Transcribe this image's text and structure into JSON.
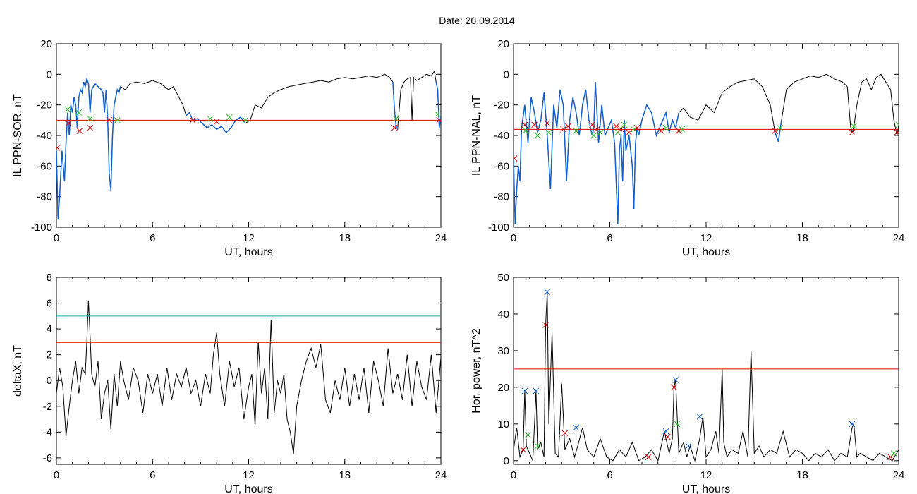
{
  "header": {
    "title": "Date:  20.09.2014"
  },
  "colors": {
    "trace": "#000000",
    "highlight": "#1060d0",
    "threshold_red": "#e00000",
    "threshold_teal": "#30a0a0",
    "marker_red": "#e00000",
    "marker_green": "#20c020",
    "marker_blue": "#1060d0"
  },
  "chart_data": [
    {
      "id": "sor",
      "type": "line",
      "ylabel": "IL PPN-SOR, nT",
      "xlabel": "UT, hours",
      "xlim": [
        0,
        24
      ],
      "ylim": [
        -100,
        20
      ],
      "xticks": [
        0,
        6,
        12,
        18,
        24
      ],
      "yticks": [
        -100,
        -80,
        -60,
        -40,
        -20,
        0,
        20
      ],
      "x": [
        0,
        0.1,
        0.2,
        0.35,
        0.5,
        0.6,
        0.7,
        0.8,
        0.9,
        1.0,
        1.1,
        1.2,
        1.3,
        1.4,
        1.5,
        1.6,
        1.7,
        1.8,
        1.9,
        2.0,
        2.1,
        2.2,
        2.3,
        2.4,
        2.6,
        2.8,
        2.9,
        3.0,
        3.1,
        3.2,
        3.3,
        3.4,
        3.5,
        3.6,
        3.7,
        3.8,
        3.9,
        4.0,
        4.3,
        4.6,
        5.0,
        5.5,
        6.0,
        6.5,
        7.0,
        7.3,
        7.6,
        7.9,
        8.1,
        8.3,
        8.5,
        8.8,
        9.1,
        9.4,
        9.7,
        10.0,
        10.3,
        10.6,
        10.9,
        11.2,
        11.5,
        11.8,
        12.1,
        12.4,
        12.8,
        13.2,
        13.6,
        14.0,
        14.5,
        15.0,
        15.5,
        16.0,
        16.5,
        17.0,
        17.5,
        18.0,
        18.5,
        19.0,
        19.5,
        20.0,
        20.5,
        20.8,
        21.0,
        21.1,
        21.2,
        21.3,
        21.5,
        21.7,
        21.9,
        22.1,
        22.2,
        22.3,
        22.5,
        22.8,
        23.1,
        23.4,
        23.6,
        23.7,
        23.8,
        23.9,
        24.0
      ],
      "y": [
        -50,
        -95,
        -80,
        -50,
        -70,
        -45,
        -25,
        -40,
        -20,
        -25,
        -15,
        -20,
        -35,
        -15,
        -10,
        -12,
        -5,
        -8,
        -3,
        -6,
        -25,
        -10,
        -8,
        -6,
        -8,
        -10,
        -12,
        -25,
        -10,
        -30,
        -65,
        -76,
        -40,
        -20,
        -15,
        -10,
        -12,
        -8,
        -10,
        -6,
        -5,
        -6,
        -4,
        -6,
        -10,
        -8,
        -14,
        -20,
        -27,
        -25,
        -30,
        -29,
        -32,
        -35,
        -33,
        -36,
        -34,
        -38,
        -35,
        -30,
        -28,
        -32,
        -30,
        -20,
        -22,
        -15,
        -12,
        -10,
        -8,
        -7,
        -6,
        -5,
        -4,
        -5,
        -3,
        -2,
        -3,
        -2,
        -1,
        -2,
        0,
        -2,
        -5,
        -22,
        -34,
        -36,
        -10,
        -5,
        -3,
        -2,
        -30,
        -2,
        -4,
        -2,
        0,
        -1,
        2,
        -5,
        -10,
        -35,
        -28
      ],
      "highlight_segments": [
        [
          0,
          4.0
        ],
        [
          8.1,
          12.0
        ],
        [
          21.0,
          21.3
        ],
        [
          23.7,
          24.0
        ]
      ],
      "thresholds": [
        {
          "value": -30,
          "color": "#e00000"
        }
      ],
      "markers": [
        {
          "x": 0.05,
          "y": -48,
          "color": "#e00000"
        },
        {
          "x": 0.7,
          "y": -23,
          "color": "#20c020"
        },
        {
          "x": 0.75,
          "y": -32,
          "color": "#e00000"
        },
        {
          "x": 1.4,
          "y": -25,
          "color": "#20c020"
        },
        {
          "x": 1.45,
          "y": -37,
          "color": "#e00000"
        },
        {
          "x": 2.1,
          "y": -29,
          "color": "#20c020"
        },
        {
          "x": 2.1,
          "y": -35,
          "color": "#e00000"
        },
        {
          "x": 3.3,
          "y": -30,
          "color": "#e00000"
        },
        {
          "x": 3.8,
          "y": -30,
          "color": "#20c020"
        },
        {
          "x": 8.5,
          "y": -30,
          "color": "#e00000"
        },
        {
          "x": 9.6,
          "y": -29,
          "color": "#20c020"
        },
        {
          "x": 10.0,
          "y": -31,
          "color": "#e00000"
        },
        {
          "x": 10.8,
          "y": -28,
          "color": "#20c020"
        },
        {
          "x": 11.8,
          "y": -30,
          "color": "#20c020"
        },
        {
          "x": 21.1,
          "y": -35,
          "color": "#e00000"
        },
        {
          "x": 21.2,
          "y": -29,
          "color": "#20c020"
        },
        {
          "x": 23.8,
          "y": -26,
          "color": "#20c020"
        },
        {
          "x": 23.9,
          "y": -30,
          "color": "#e00000"
        }
      ]
    },
    {
      "id": "nal",
      "type": "line",
      "ylabel": "IL PPN-NAL, nT",
      "xlabel": "UT, hours",
      "xlim": [
        0,
        24
      ],
      "ylim": [
        -100,
        20
      ],
      "xticks": [
        0,
        6,
        12,
        18,
        24
      ],
      "yticks": [
        -100,
        -80,
        -60,
        -40,
        -20,
        0,
        20
      ],
      "x": [
        0,
        0.1,
        0.2,
        0.3,
        0.4,
        0.5,
        0.7,
        0.9,
        1.1,
        1.3,
        1.5,
        1.7,
        1.9,
        2.1,
        2.3,
        2.5,
        2.7,
        2.9,
        3.1,
        3.3,
        3.5,
        3.7,
        3.9,
        4.1,
        4.3,
        4.5,
        4.7,
        4.9,
        5.0,
        5.1,
        5.3,
        5.5,
        5.7,
        5.9,
        6.1,
        6.3,
        6.5,
        6.6,
        6.7,
        6.8,
        6.9,
        7.0,
        7.2,
        7.4,
        7.5,
        7.6,
        7.7,
        7.8,
        8.0,
        8.3,
        8.6,
        8.9,
        9.1,
        9.3,
        9.5,
        9.7,
        9.9,
        10.1,
        10.3,
        10.6,
        11.0,
        11.5,
        12.0,
        12.5,
        13.0,
        13.5,
        14.0,
        14.5,
        15.0,
        15.5,
        16.0,
        16.3,
        16.5,
        16.7,
        17.0,
        17.5,
        18.0,
        18.5,
        19.0,
        19.5,
        20.0,
        20.5,
        20.8,
        21.0,
        21.1,
        21.2,
        21.4,
        21.7,
        22.0,
        22.3,
        22.6,
        22.9,
        23.2,
        23.5,
        23.7,
        23.9,
        24.0
      ],
      "y": [
        -55,
        -98,
        -75,
        -60,
        -70,
        -35,
        -20,
        -45,
        -15,
        -25,
        -38,
        -30,
        -12,
        -40,
        -75,
        -20,
        -35,
        -10,
        -20,
        -70,
        -30,
        -15,
        -25,
        -40,
        -20,
        -10,
        -30,
        -40,
        -35,
        -5,
        -45,
        -20,
        -40,
        -35,
        -30,
        -45,
        -98,
        -50,
        -40,
        -70,
        -30,
        -50,
        -40,
        -60,
        -88,
        -45,
        -35,
        -40,
        -30,
        -20,
        -25,
        -40,
        -35,
        -30,
        -25,
        -38,
        -30,
        -35,
        -25,
        -22,
        -28,
        -30,
        -20,
        -25,
        -12,
        -8,
        -5,
        -4,
        -3,
        -8,
        -20,
        -38,
        -44,
        -30,
        -10,
        -5,
        -3,
        -1,
        -2,
        0,
        -3,
        -5,
        -8,
        -34,
        -38,
        -35,
        -20,
        -5,
        -3,
        -10,
        -2,
        0,
        -5,
        -10,
        -30,
        -40,
        -33
      ],
      "highlight_segments": [
        [
          0,
          10.5
        ],
        [
          16.3,
          16.7
        ]
      ],
      "thresholds": [
        {
          "value": -36,
          "color": "#e00000"
        }
      ],
      "markers": [
        {
          "x": 0.05,
          "y": -55,
          "color": "#e00000"
        },
        {
          "x": 0.7,
          "y": -33,
          "color": "#e00000"
        },
        {
          "x": 0.75,
          "y": -37,
          "color": "#20c020"
        },
        {
          "x": 1.3,
          "y": -33,
          "color": "#e00000"
        },
        {
          "x": 1.5,
          "y": -40,
          "color": "#20c020"
        },
        {
          "x": 2.1,
          "y": -32,
          "color": "#e00000"
        },
        {
          "x": 2.2,
          "y": -38,
          "color": "#20c020"
        },
        {
          "x": 3.1,
          "y": -36,
          "color": "#e00000"
        },
        {
          "x": 3.4,
          "y": -34,
          "color": "#e00000"
        },
        {
          "x": 3.9,
          "y": -37,
          "color": "#20c020"
        },
        {
          "x": 4.9,
          "y": -33,
          "color": "#e00000"
        },
        {
          "x": 5.0,
          "y": -40,
          "color": "#20c020"
        },
        {
          "x": 5.2,
          "y": -36,
          "color": "#e00000"
        },
        {
          "x": 5.4,
          "y": -38,
          "color": "#20c020"
        },
        {
          "x": 6.4,
          "y": -34,
          "color": "#e00000"
        },
        {
          "x": 6.5,
          "y": -38,
          "color": "#20c020"
        },
        {
          "x": 6.7,
          "y": -36,
          "color": "#e00000"
        },
        {
          "x": 6.9,
          "y": -33,
          "color": "#20c020"
        },
        {
          "x": 7.2,
          "y": -38,
          "color": "#e00000"
        },
        {
          "x": 7.5,
          "y": -36,
          "color": "#20c020"
        },
        {
          "x": 7.7,
          "y": -35,
          "color": "#e00000"
        },
        {
          "x": 9.2,
          "y": -37,
          "color": "#e00000"
        },
        {
          "x": 9.5,
          "y": -35,
          "color": "#20c020"
        },
        {
          "x": 10.3,
          "y": -37,
          "color": "#e00000"
        },
        {
          "x": 10.5,
          "y": -36,
          "color": "#20c020"
        },
        {
          "x": 16.3,
          "y": -37,
          "color": "#e00000"
        },
        {
          "x": 16.6,
          "y": -35,
          "color": "#20c020"
        },
        {
          "x": 21.1,
          "y": -38,
          "color": "#e00000"
        },
        {
          "x": 21.2,
          "y": -34,
          "color": "#20c020"
        },
        {
          "x": 23.9,
          "y": -38,
          "color": "#e00000"
        },
        {
          "x": 24.0,
          "y": -33,
          "color": "#20c020"
        }
      ]
    },
    {
      "id": "deltax",
      "type": "line",
      "ylabel": "deltaX, nT",
      "xlabel": "UT, hours",
      "xlim": [
        0,
        24
      ],
      "ylim": [
        -6.5,
        8
      ],
      "xticks": [
        0,
        6,
        12,
        18,
        24
      ],
      "yticks": [
        -6,
        -4,
        -2,
        0,
        2,
        4,
        6,
        8
      ],
      "x": [
        0,
        0.2,
        0.4,
        0.6,
        0.8,
        1.0,
        1.2,
        1.4,
        1.6,
        1.8,
        1.9,
        2.0,
        2.1,
        2.2,
        2.4,
        2.6,
        2.8,
        3.0,
        3.2,
        3.4,
        3.6,
        3.8,
        4.0,
        4.2,
        4.5,
        4.8,
        5.1,
        5.4,
        5.7,
        6.0,
        6.3,
        6.6,
        6.9,
        7.2,
        7.5,
        7.8,
        8.1,
        8.4,
        8.7,
        9.0,
        9.3,
        9.6,
        9.8,
        10.0,
        10.2,
        10.5,
        10.8,
        11.1,
        11.4,
        11.7,
        12.0,
        12.2,
        12.4,
        12.6,
        12.8,
        13.0,
        13.2,
        13.4,
        13.6,
        13.8,
        14.0,
        14.2,
        14.4,
        14.6,
        14.8,
        15.0,
        15.3,
        15.6,
        15.9,
        16.2,
        16.5,
        16.8,
        17.1,
        17.4,
        17.7,
        18.0,
        18.3,
        18.6,
        18.9,
        19.2,
        19.5,
        19.8,
        20.1,
        20.4,
        20.7,
        21.0,
        21.3,
        21.6,
        21.9,
        22.2,
        22.5,
        22.8,
        23.1,
        23.4,
        23.7,
        24.0
      ],
      "y": [
        -1,
        1,
        -0.5,
        -4.3,
        -2,
        0,
        1.5,
        -1,
        1,
        0.5,
        3,
        6.2,
        3.5,
        0.5,
        -0.5,
        1.5,
        -3,
        -1,
        0,
        -3.8,
        0.5,
        -2,
        1.5,
        0,
        -1.5,
        1,
        0,
        -2.5,
        0.5,
        -1,
        0.5,
        -2,
        1,
        -1.5,
        0.5,
        -0.5,
        1,
        -1,
        0,
        -2,
        0.5,
        -1,
        2,
        3.7,
        0.5,
        -2,
        1.5,
        -0.5,
        1,
        -3,
        -0.5,
        0.5,
        -3.5,
        3,
        -1,
        1,
        -3,
        4.7,
        -2.5,
        0,
        -1,
        0.5,
        -3,
        -4,
        -5.7,
        -2,
        0,
        1.5,
        2.5,
        1,
        2.8,
        -1.5,
        -2.5,
        0,
        -1.5,
        1,
        -2,
        0.5,
        -1.5,
        1,
        -2.5,
        1.5,
        0,
        -2,
        2.5,
        -1,
        0.5,
        -1.5,
        2,
        -2,
        1.5,
        -0.5,
        -1.5,
        2,
        -2.5,
        1.8
      ],
      "thresholds": [
        {
          "value": 5,
          "color": "#30a0a0"
        },
        {
          "value": 2.95,
          "color": "#e00000"
        }
      ]
    },
    {
      "id": "hpower",
      "type": "line",
      "ylabel": "Hor. power, nT^2",
      "xlabel": "UT, hours",
      "xlim": [
        0,
        24
      ],
      "ylim": [
        -1,
        50
      ],
      "xticks": [
        0,
        6,
        12,
        18,
        24
      ],
      "yticks": [
        0,
        10,
        20,
        30,
        40,
        50
      ],
      "x": [
        0,
        0.2,
        0.4,
        0.6,
        0.7,
        0.8,
        1.0,
        1.2,
        1.4,
        1.5,
        1.7,
        1.9,
        2.0,
        2.1,
        2.2,
        2.4,
        2.6,
        2.8,
        3.0,
        3.2,
        3.5,
        3.8,
        4.0,
        4.3,
        4.6,
        5.0,
        5.4,
        5.8,
        6.2,
        6.6,
        7.0,
        7.4,
        7.8,
        8.2,
        8.6,
        9.0,
        9.4,
        9.7,
        9.9,
        10.0,
        10.1,
        10.3,
        10.6,
        10.8,
        11.0,
        11.3,
        11.6,
        11.8,
        12.0,
        12.3,
        12.6,
        12.8,
        13.0,
        13.1,
        13.3,
        13.6,
        14.0,
        14.3,
        14.6,
        14.8,
        15.0,
        15.3,
        15.6,
        16.0,
        16.4,
        16.8,
        17.2,
        17.6,
        18.0,
        18.4,
        18.8,
        19.2,
        19.6,
        20.0,
        20.4,
        20.8,
        21.1,
        21.2,
        21.4,
        21.6,
        22.0,
        22.4,
        22.8,
        23.2,
        23.6,
        24.0
      ],
      "y": [
        3,
        9,
        1,
        3,
        19,
        4,
        2,
        0,
        19,
        3,
        5,
        1,
        37,
        46,
        10,
        35,
        2,
        1,
        21,
        3,
        6,
        1,
        4,
        9,
        3,
        1,
        6,
        1,
        0,
        3,
        1,
        5,
        0,
        1,
        3,
        0,
        8,
        2,
        6,
        20,
        22,
        2,
        5,
        1,
        4,
        0,
        6,
        12,
        1,
        3,
        8,
        2,
        25,
        5,
        1,
        3,
        2,
        8,
        1,
        30,
        2,
        4,
        1,
        3,
        2,
        8,
        1,
        3,
        2,
        0,
        2,
        1,
        3,
        0,
        2,
        1,
        9,
        10,
        1,
        2,
        1,
        0,
        2,
        1,
        0,
        3
      ],
      "thresholds": [
        {
          "value": 25,
          "color": "#e00000"
        }
      ],
      "markers": [
        {
          "x": 0.6,
          "y": 3,
          "color": "#e00000"
        },
        {
          "x": 0.7,
          "y": 19,
          "color": "#1060d0"
        },
        {
          "x": 0.9,
          "y": 7,
          "color": "#20c020"
        },
        {
          "x": 1.4,
          "y": 19,
          "color": "#1060d0"
        },
        {
          "x": 1.5,
          "y": 4,
          "color": "#20c020"
        },
        {
          "x": 2.1,
          "y": 46,
          "color": "#1060d0"
        },
        {
          "x": 2.0,
          "y": 37,
          "color": "#e00000"
        },
        {
          "x": 3.2,
          "y": 7.5,
          "color": "#e00000"
        },
        {
          "x": 3.9,
          "y": 9,
          "color": "#1060d0"
        },
        {
          "x": 8.4,
          "y": 1,
          "color": "#e00000"
        },
        {
          "x": 9.6,
          "y": 6.5,
          "color": "#e00000"
        },
        {
          "x": 9.5,
          "y": 8,
          "color": "#1060d0"
        },
        {
          "x": 10.0,
          "y": 20,
          "color": "#e00000"
        },
        {
          "x": 10.1,
          "y": 22,
          "color": "#1060d0"
        },
        {
          "x": 10.2,
          "y": 10,
          "color": "#20c020"
        },
        {
          "x": 10.9,
          "y": 4,
          "color": "#1060d0"
        },
        {
          "x": 11.6,
          "y": 12,
          "color": "#1060d0"
        },
        {
          "x": 21.1,
          "y": 10,
          "color": "#1060d0"
        },
        {
          "x": 23.5,
          "y": 1,
          "color": "#e00000"
        },
        {
          "x": 23.7,
          "y": 2,
          "color": "#20c020"
        }
      ]
    }
  ]
}
